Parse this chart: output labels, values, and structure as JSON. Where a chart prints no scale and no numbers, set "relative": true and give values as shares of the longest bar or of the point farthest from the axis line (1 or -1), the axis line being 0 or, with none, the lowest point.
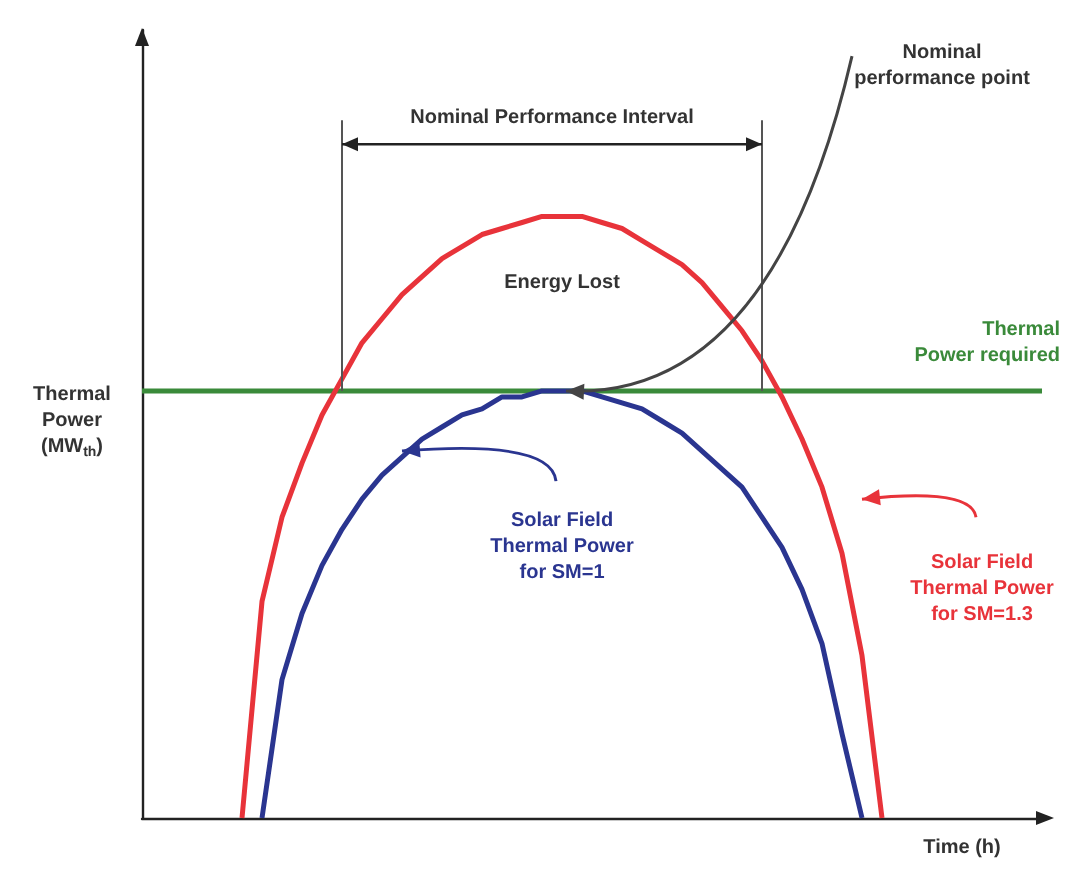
{
  "chart_data": {
    "type": "line",
    "relative": true,
    "xlabel": "Time (h)",
    "ylabel": "Thermal Power (MW$_{th}$)",
    "categories": [
      null,
      null,
      null,
      null,
      null,
      null,
      null,
      null,
      null,
      null,
      null,
      null,
      null,
      null,
      null,
      null,
      null,
      null,
      null,
      null,
      null,
      null,
      null,
      null,
      null,
      null,
      null,
      null,
      null,
      null,
      null,
      null,
      null,
      null,
      null,
      null,
      null,
      null,
      null,
      null,
      null,
      null,
      null,
      null,
      null,
      null
    ],
    "series": [
      {
        "name": "Thermal Power required",
        "color": "#3a8a3a",
        "values": [
          0.71,
          0.71,
          0.71,
          0.71,
          0.71,
          0.71,
          0.71,
          0.71,
          0.71,
          0.71,
          0.71,
          0.71,
          0.71,
          0.71,
          0.71,
          0.71,
          0.71,
          0.71,
          0.71,
          0.71,
          0.71,
          0.71,
          0.71,
          0.71,
          0.71,
          0.71,
          0.71,
          0.71,
          0.71,
          0.71,
          0.71,
          0.71,
          0.71,
          0.71,
          0.71,
          0.71,
          0.71,
          0.71,
          0.71,
          0.71,
          0.71,
          0.71,
          0.71,
          0.71,
          0.71,
          0.71
        ]
      },
      {
        "name": "Solar Field Thermal Power for SM=1",
        "color": "#2a3590",
        "values": [
          null,
          null,
          null,
          null,
          null,
          null,
          0,
          0.23,
          0.34,
          0.42,
          0.48,
          0.53,
          0.57,
          0.6,
          0.63,
          0.65,
          0.67,
          0.68,
          0.7,
          0.7,
          0.71,
          0.71,
          0.71,
          0.7,
          0.69,
          0.68,
          0.66,
          0.64,
          0.61,
          0.58,
          0.55,
          0.5,
          0.45,
          0.38,
          0.29,
          0.14,
          0,
          null,
          null,
          null,
          null,
          null,
          null,
          null,
          null,
          null
        ]
      },
      {
        "name": "Solar Field Thermal Power for SM=1.3",
        "color": "#e8333a",
        "values": [
          null,
          null,
          null,
          null,
          null,
          0,
          0.36,
          0.5,
          0.59,
          0.67,
          0.73,
          0.79,
          0.83,
          0.87,
          0.9,
          0.93,
          0.95,
          0.97,
          0.98,
          0.99,
          1,
          1,
          1,
          0.99,
          0.98,
          0.96,
          0.94,
          0.92,
          0.89,
          0.85,
          0.81,
          0.76,
          0.7,
          0.63,
          0.55,
          0.44,
          0.27,
          0,
          null,
          null,
          null,
          null,
          null,
          null,
          null,
          null
        ]
      }
    ],
    "annotations": [
      "Nominal Performance Interval",
      "Nominal performance point",
      "Energy Lost"
    ]
  }
}
